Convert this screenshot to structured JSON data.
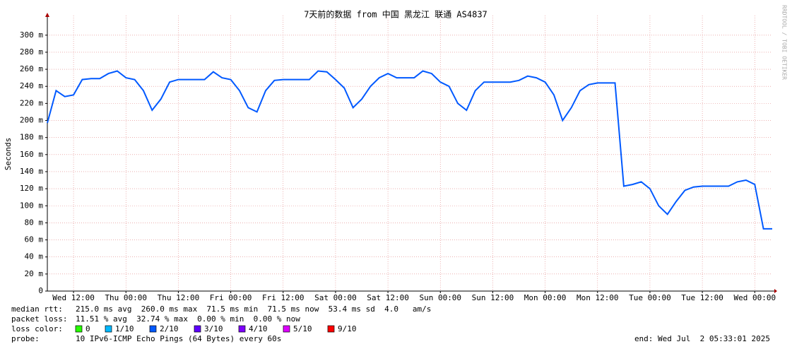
{
  "chart_data": {
    "type": "line",
    "title": "7天前的数据 from 中国 黑龙江 联通 AS4837",
    "y_label": "Seconds",
    "watermark": "RRDTOOL / TOBI OETIKER",
    "categories": [
      null,
      null,
      null,
      "Wed 12:00",
      null,
      null,
      null,
      null,
      null,
      "Thu 00:00",
      null,
      null,
      null,
      null,
      null,
      "Thu 12:00",
      null,
      null,
      null,
      null,
      null,
      "Fri 00:00",
      null,
      null,
      null,
      null,
      null,
      "Fri 12:00",
      null,
      null,
      null,
      null,
      null,
      "Sat 00:00",
      null,
      null,
      null,
      null,
      null,
      "Sat 12:00",
      null,
      null,
      null,
      null,
      null,
      "Sun 00:00",
      null,
      null,
      null,
      null,
      null,
      "Sun 12:00",
      null,
      null,
      null,
      null,
      null,
      "Mon 00:00",
      null,
      null,
      null,
      null,
      null,
      "Mon 12:00",
      null,
      null,
      null,
      null,
      null,
      "Tue 00:00",
      null,
      null,
      null,
      null,
      null,
      "Tue 12:00",
      null,
      null,
      null,
      null,
      null,
      "Wed 00:00",
      null,
      null
    ],
    "series": [
      {
        "name": "median rtt:",
        "color": "#0059ff",
        "values": [
          0.197,
          0.235,
          0.228,
          0.23,
          0.248,
          0.249,
          0.249,
          0.255,
          0.258,
          0.25,
          0.248,
          0.235,
          0.212,
          0.225,
          0.245,
          0.248,
          0.248,
          0.248,
          0.248,
          0.257,
          0.25,
          0.248,
          0.235,
          0.215,
          0.21,
          0.235,
          0.247,
          0.248,
          0.248,
          0.248,
          0.248,
          0.258,
          0.257,
          0.248,
          0.238,
          0.215,
          0.225,
          0.24,
          0.25,
          0.255,
          0.25,
          0.25,
          0.25,
          0.258,
          0.255,
          0.245,
          0.24,
          0.22,
          0.212,
          0.235,
          0.245,
          0.245,
          0.245,
          0.245,
          0.247,
          0.252,
          0.25,
          0.245,
          0.23,
          0.2,
          0.215,
          0.235,
          0.242,
          0.244,
          0.244,
          0.244,
          0.123,
          0.125,
          0.128,
          0.12,
          0.1,
          0.09,
          0.105,
          0.118,
          0.122,
          0.123,
          0.123,
          0.123,
          0.123,
          0.128,
          0.13,
          0.125,
          0.073,
          0.073
        ]
      }
    ],
    "ylim": [
      0,
      0.323
    ],
    "yticks": [
      0,
      {
        "value": 0.02,
        "label": "20 m"
      },
      {
        "value": 0.04,
        "label": "40 m"
      },
      {
        "value": 0.06,
        "label": "60 m"
      },
      {
        "value": 0.08,
        "label": "80 m"
      },
      {
        "value": 0.1,
        "label": "100 m"
      },
      {
        "value": 0.12,
        "label": "120 m"
      },
      {
        "value": 0.14,
        "label": "140 m"
      },
      {
        "value": 0.16,
        "label": "160 m"
      },
      {
        "value": 0.18,
        "label": "180 m"
      },
      {
        "value": 0.2,
        "label": "200 m"
      },
      {
        "value": 0.22,
        "label": "220 m"
      },
      {
        "value": 0.24,
        "label": "240 m"
      },
      {
        "value": 0.26,
        "label": "260 m"
      },
      {
        "value": 0.28,
        "label": "280 m"
      },
      {
        "value": 0.3,
        "label": "300 m"
      }
    ],
    "grid": true,
    "median_stats": "215.0 ms avg  260.0 ms max  71.5 ms min  71.5 ms now  53.4 ms sd  4.0   am/s",
    "packet_loss": {
      "label": "packet loss:",
      "text": "11.51 % avg  32.74 % max  0.00 % min  0.00 % now"
    },
    "loss_color": {
      "label": "loss color:",
      "items": [
        {
          "name": "0",
          "color": "#26ff00"
        },
        {
          "name": "1/10",
          "color": "#00b8ff"
        },
        {
          "name": "2/10",
          "color": "#0059ff"
        },
        {
          "name": "3/10",
          "color": "#5e00ff"
        },
        {
          "name": "4/10",
          "color": "#7e00ff"
        },
        {
          "name": "5/10",
          "color": "#dd00ff"
        },
        {
          "name": "9/10",
          "color": "#ff0000"
        }
      ]
    },
    "probe": {
      "label": "probe:",
      "text": "10 IPv6-ICMP Echo Pings (64 Bytes) every 60s"
    },
    "end": "end: Wed Jul  2 05:33:01 2025"
  }
}
